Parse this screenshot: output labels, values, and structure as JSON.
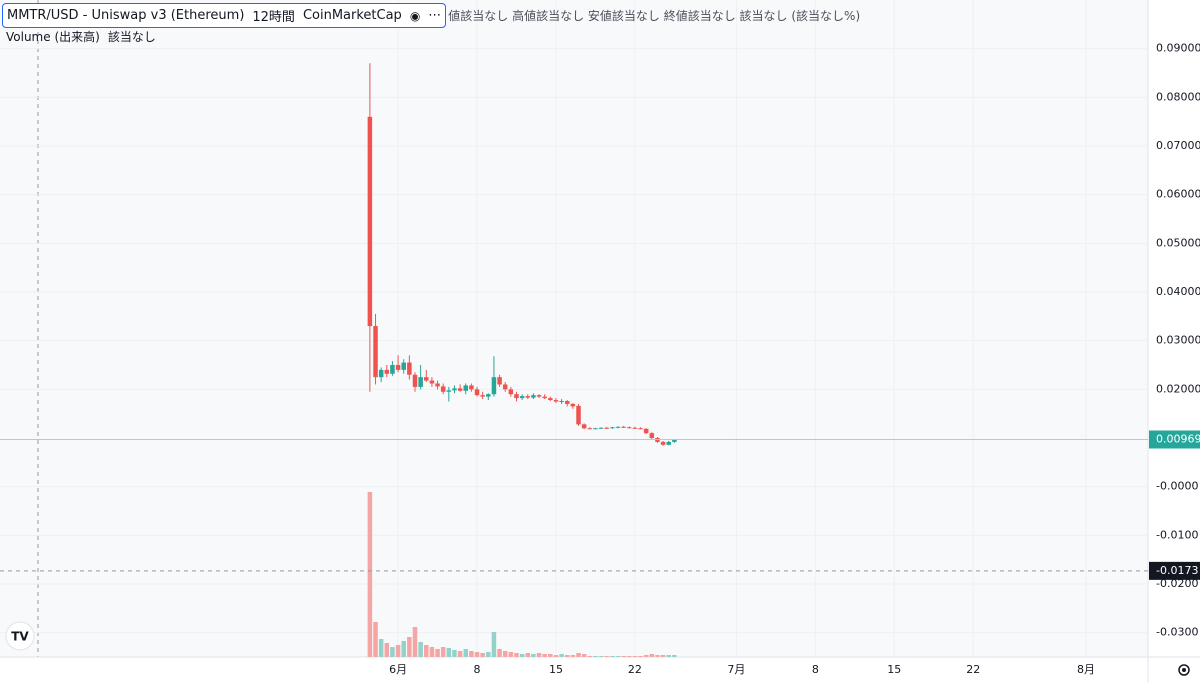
{
  "chart_data": {
    "type": "candlestick",
    "header": {
      "symbol": "MMTR/USD - Uniswap v3 (Ethereum)",
      "interval": "12時間",
      "source": "CoinMarketCap",
      "ohlc_text": "値該当なし 高値該当なし 安値該当なし 終値該当なし 該当なし (該当なし%)",
      "volume_label": "Volume (出来高)",
      "volume_value": "該当なし"
    },
    "open": [
      0.076,
      0.033,
      0.0225,
      0.024,
      0.0232,
      0.025,
      0.024,
      0.0255,
      0.023,
      0.0205,
      0.0225,
      0.0218,
      0.0212,
      0.0206,
      0.0195,
      0.0198,
      0.0202,
      0.0197,
      0.0208,
      0.02,
      0.0188,
      0.0185,
      0.019,
      0.0225,
      0.021,
      0.02,
      0.019,
      0.0182,
      0.0186,
      0.0183,
      0.0188,
      0.0185,
      0.0182,
      0.0178,
      0.0175,
      0.0176,
      0.017,
      0.0166,
      0.0128,
      0.012,
      0.0119,
      0.012,
      0.0121,
      0.012,
      0.0122,
      0.0123,
      0.0122,
      0.0121,
      0.012,
      0.0119,
      0.011,
      0.01,
      0.0092,
      0.0086,
      0.0092
    ],
    "high": [
      0.087,
      0.0355,
      0.0245,
      0.025,
      0.0258,
      0.027,
      0.0262,
      0.027,
      0.0235,
      0.025,
      0.024,
      0.0225,
      0.0218,
      0.0212,
      0.0205,
      0.0208,
      0.021,
      0.0212,
      0.0212,
      0.0205,
      0.0195,
      0.0192,
      0.0268,
      0.023,
      0.0215,
      0.0205,
      0.0195,
      0.019,
      0.019,
      0.0192,
      0.019,
      0.019,
      0.0185,
      0.0182,
      0.018,
      0.0178,
      0.0172,
      0.017,
      0.013,
      0.0122,
      0.0121,
      0.0122,
      0.0123,
      0.0123,
      0.0124,
      0.0125,
      0.0124,
      0.0123,
      0.0122,
      0.012,
      0.0112,
      0.0102,
      0.0094,
      0.0094,
      0.0098
    ],
    "low": [
      0.0195,
      0.021,
      0.0215,
      0.0225,
      0.0228,
      0.0235,
      0.0232,
      0.022,
      0.0195,
      0.02,
      0.0215,
      0.0205,
      0.02,
      0.019,
      0.0175,
      0.0192,
      0.0195,
      0.019,
      0.0195,
      0.0185,
      0.018,
      0.0178,
      0.0185,
      0.0205,
      0.0195,
      0.0185,
      0.0175,
      0.0178,
      0.018,
      0.018,
      0.0182,
      0.018,
      0.0176,
      0.0172,
      0.017,
      0.0165,
      0.016,
      0.0125,
      0.0118,
      0.0118,
      0.0118,
      0.0119,
      0.0119,
      0.0119,
      0.012,
      0.0121,
      0.012,
      0.0119,
      0.0118,
      0.0108,
      0.0098,
      0.009,
      0.0084,
      0.0085,
      0.009
    ],
    "close": [
      0.033,
      0.0225,
      0.024,
      0.0232,
      0.025,
      0.024,
      0.0255,
      0.023,
      0.0205,
      0.0225,
      0.0218,
      0.0212,
      0.0206,
      0.0195,
      0.0198,
      0.0202,
      0.0197,
      0.0208,
      0.02,
      0.0188,
      0.0185,
      0.019,
      0.0225,
      0.021,
      0.02,
      0.019,
      0.0182,
      0.0186,
      0.0183,
      0.0188,
      0.0185,
      0.0182,
      0.0178,
      0.0175,
      0.0176,
      0.017,
      0.0165,
      0.0128,
      0.012,
      0.0119,
      0.012,
      0.0121,
      0.012,
      0.0122,
      0.0123,
      0.0122,
      0.0121,
      0.012,
      0.0119,
      0.011,
      0.01,
      0.0092,
      0.0086,
      0.0092,
      0.00969
    ],
    "volume": [
      165,
      35,
      18,
      14,
      10,
      12,
      16,
      20,
      30,
      15,
      12,
      10,
      8,
      10,
      9,
      7,
      6,
      8,
      6,
      5,
      4,
      5,
      25,
      8,
      6,
      5,
      4,
      3,
      4,
      3,
      4,
      3,
      3,
      2,
      3,
      2,
      2,
      4,
      3,
      1,
      1,
      1,
      1,
      1,
      1,
      1,
      1,
      1,
      1,
      2,
      3,
      2,
      2,
      2,
      2
    ],
    "up_color": "#26a69a",
    "down_color": "#ef5350",
    "volume_up_color": "#93d2cb",
    "volume_down_color": "#f5a6a4",
    "ylim": [
      0.1,
      -0.035
    ],
    "yticks": [
      {
        "value": 0.09,
        "label": "0.09000"
      },
      {
        "value": 0.08,
        "label": "0.08000"
      },
      {
        "value": 0.07,
        "label": "0.07000"
      },
      {
        "value": 0.06,
        "label": "0.06000"
      },
      {
        "value": 0.05,
        "label": "0.05000"
      },
      {
        "value": 0.04,
        "label": "0.04000"
      },
      {
        "value": 0.03,
        "label": "0.03000"
      },
      {
        "value": 0.02,
        "label": "0.02000"
      },
      {
        "value": 0,
        "label": "-0.0000"
      },
      {
        "value": -0.01,
        "label": "-0.0100"
      },
      {
        "value": -0.02,
        "label": "-0.0200"
      },
      {
        "value": -0.03,
        "label": "-0.0300"
      }
    ],
    "xlim": [
      -65.6,
      138
    ],
    "xticks": [
      {
        "value": 5,
        "label": "6月"
      },
      {
        "value": 19,
        "label": "8"
      },
      {
        "value": 33,
        "label": "15"
      },
      {
        "value": 47,
        "label": "22"
      },
      {
        "value": 65,
        "label": "7月"
      },
      {
        "value": 79,
        "label": "8"
      },
      {
        "value": 93,
        "label": "15"
      },
      {
        "value": 107,
        "label": "22"
      },
      {
        "value": 127,
        "label": "8月"
      }
    ],
    "last_price": 0.00969,
    "crosshair_price": -0.0173,
    "grid": true
  }
}
